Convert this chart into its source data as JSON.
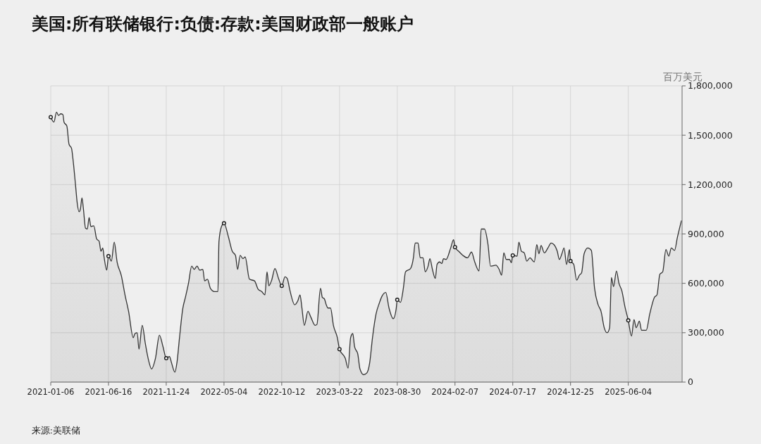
{
  "chart_data": {
    "type": "area",
    "title": "美国:所有联储银行:负债:存款:美国财政部一般账户",
    "ylabel": "百万美元",
    "annotations": [
      "来源:美联储"
    ],
    "xlim": [
      "2021-01-06",
      "2025-11-01"
    ],
    "xticks": [
      "2021-01-06",
      "2021-06-16",
      "2021-11-24",
      "2022-05-04",
      "2022-10-12",
      "2023-03-22",
      "2023-08-30",
      "2024-02-07",
      "2024-07-17",
      "2024-12-25",
      "2025-06-04"
    ],
    "ylim": [
      0,
      1800000
    ],
    "yticks": [
      0,
      {
        "value": 300000,
        "label": "300,000"
      },
      {
        "value": 600000,
        "label": "600,000"
      },
      {
        "value": 900000,
        "label": "900,000"
      },
      {
        "value": 1200000,
        "label": "1,200,000"
      },
      {
        "value": 1500000,
        "label": "1,500,000"
      },
      {
        "value": 1800000,
        "label": "1,800,000"
      }
    ],
    "grid": true,
    "series": [
      {
        "color": "#333333",
        "x": [
          "2021-01-06",
          "2021-01-15",
          "2021-01-22",
          "2021-01-28",
          "2021-02-03",
          "2021-02-09",
          "2021-02-12",
          "2021-02-20",
          "2021-02-26",
          "2021-03-05",
          "2021-03-09",
          "2021-03-16",
          "2021-03-21",
          "2021-03-26",
          "2021-03-30",
          "2021-04-03",
          "2021-04-07",
          "2021-04-13",
          "2021-04-18",
          "2021-04-23",
          "2021-04-28",
          "2021-05-06",
          "2021-05-14",
          "2021-05-21",
          "2021-05-26",
          "2021-05-31",
          "2021-06-04",
          "2021-06-11",
          "2021-06-16",
          "2021-06-24",
          "2021-07-02",
          "2021-07-10",
          "2021-07-22",
          "2021-08-01",
          "2021-08-11",
          "2021-08-24",
          "2021-08-29",
          "2021-09-04",
          "2021-09-09",
          "2021-09-18",
          "2021-09-27",
          "2021-10-06",
          "2021-10-14",
          "2021-10-25",
          "2021-11-05",
          "2021-11-15",
          "2021-11-24",
          "2021-12-03",
          "2021-12-09",
          "2021-12-18",
          "2021-12-24",
          "2021-12-31",
          "2022-01-09",
          "2022-01-17",
          "2022-01-25",
          "2022-02-03",
          "2022-02-10",
          "2022-02-18",
          "2022-02-25",
          "2022-03-06",
          "2022-03-11",
          "2022-03-19",
          "2022-03-27",
          "2022-04-07",
          "2022-04-17",
          "2022-04-20",
          "2022-04-27",
          "2022-05-04",
          "2022-05-16",
          "2022-05-27",
          "2022-06-05",
          "2022-06-11",
          "2022-06-18",
          "2022-06-26",
          "2022-07-02",
          "2022-07-14",
          "2022-07-28",
          "2022-08-07",
          "2022-08-17",
          "2022-08-26",
          "2022-09-01",
          "2022-09-06",
          "2022-09-14",
          "2022-09-23",
          "2022-10-03",
          "2022-10-12",
          "2022-10-21",
          "2022-10-27",
          "2022-11-04",
          "2022-11-17",
          "2022-11-26",
          "2022-12-02",
          "2022-12-07",
          "2022-12-14",
          "2022-12-24",
          "2023-01-01",
          "2023-01-13",
          "2023-01-18",
          "2023-01-28",
          "2023-02-02",
          "2023-02-08",
          "2023-02-13",
          "2023-02-18",
          "2023-02-25",
          "2023-03-05",
          "2023-03-16",
          "2023-03-22",
          "2023-04-07",
          "2023-04-15",
          "2023-04-22",
          "2023-04-28",
          "2023-05-03",
          "2023-05-12",
          "2023-05-18",
          "2023-05-28",
          "2023-06-06",
          "2023-06-14",
          "2023-06-22",
          "2023-07-02",
          "2023-07-11",
          "2023-07-18",
          "2023-07-29",
          "2023-08-07",
          "2023-08-19",
          "2023-08-27",
          "2023-08-30",
          "2023-09-08",
          "2023-09-16",
          "2023-09-22",
          "2023-10-06",
          "2023-10-14",
          "2023-10-19",
          "2023-10-27",
          "2023-11-02",
          "2023-11-10",
          "2023-11-16",
          "2023-11-24",
          "2023-11-29",
          "2023-12-06",
          "2023-12-14",
          "2023-12-19",
          "2023-12-26",
          "2024-01-01",
          "2024-01-06",
          "2024-01-13",
          "2024-01-26",
          "2024-02-03",
          "2024-02-07",
          "2024-02-17",
          "2024-02-29",
          "2024-03-13",
          "2024-03-24",
          "2024-04-02",
          "2024-04-14",
          "2024-04-20",
          "2024-04-29",
          "2024-05-09",
          "2024-05-16",
          "2024-05-31",
          "2024-06-09",
          "2024-06-16",
          "2024-06-22",
          "2024-06-29",
          "2024-07-08",
          "2024-07-13",
          "2024-07-17",
          "2024-07-29",
          "2024-08-03",
          "2024-08-10",
          "2024-08-18",
          "2024-08-25",
          "2024-09-03",
          "2024-09-15",
          "2024-09-22",
          "2024-09-28",
          "2024-10-04",
          "2024-10-13",
          "2024-10-23",
          "2024-11-01",
          "2024-11-09",
          "2024-11-18",
          "2024-11-24",
          "2024-12-01",
          "2024-12-07",
          "2024-12-14",
          "2024-12-22",
          "2024-12-25",
          "2025-01-03",
          "2025-01-11",
          "2025-01-19",
          "2025-01-25",
          "2025-02-01",
          "2025-02-11",
          "2025-02-21",
          "2025-03-02",
          "2025-03-12",
          "2025-03-20",
          "2025-03-29",
          "2025-04-06",
          "2025-04-13",
          "2025-04-18",
          "2025-04-24",
          "2025-05-02",
          "2025-05-09",
          "2025-05-17",
          "2025-05-26",
          "2025-06-04",
          "2025-06-13",
          "2025-06-20",
          "2025-06-26",
          "2025-07-05",
          "2025-07-11",
          "2025-07-24",
          "2025-08-03",
          "2025-08-16",
          "2025-08-23",
          "2025-08-31",
          "2025-09-08",
          "2025-09-17",
          "2025-09-25",
          "2025-10-02",
          "2025-10-11",
          "2025-10-19",
          "2025-10-30"
        ],
        "values": [
          1610000,
          1580000,
          1640000,
          1620000,
          1630000,
          1625000,
          1580000,
          1555000,
          1445000,
          1420000,
          1355000,
          1200000,
          1085000,
          1035000,
          1055000,
          1120000,
          1055000,
          935000,
          930000,
          1000000,
          945000,
          950000,
          870000,
          855000,
          795000,
          815000,
          755000,
          680000,
          765000,
          735000,
          850000,
          730000,
          645000,
          530000,
          430000,
          270000,
          295000,
          300000,
          200000,
          345000,
          230000,
          130000,
          80000,
          145000,
          285000,
          215000,
          145000,
          155000,
          115000,
          60000,
          120000,
          270000,
          445000,
          520000,
          600000,
          705000,
          685000,
          705000,
          680000,
          685000,
          615000,
          625000,
          570000,
          550000,
          550000,
          855000,
          945000,
          965000,
          885000,
          795000,
          770000,
          685000,
          770000,
          750000,
          760000,
          625000,
          615000,
          565000,
          550000,
          530000,
          670000,
          585000,
          620000,
          690000,
          630000,
          585000,
          640000,
          630000,
          555000,
          470000,
          495000,
          530000,
          455000,
          345000,
          430000,
          395000,
          345000,
          350000,
          570000,
          515000,
          505000,
          470000,
          450000,
          450000,
          345000,
          270000,
          200000,
          145000,
          85000,
          270000,
          295000,
          215000,
          170000,
          80000,
          45000,
          55000,
          115000,
          270000,
          415000,
          480000,
          520000,
          545000,
          450000,
          385000,
          445000,
          500000,
          485000,
          570000,
          670000,
          690000,
          755000,
          845000,
          845000,
          755000,
          755000,
          670000,
          705000,
          750000,
          685000,
          630000,
          715000,
          730000,
          720000,
          750000,
          745000,
          815000,
          865000,
          820000,
          795000,
          770000,
          755000,
          790000,
          730000,
          675000,
          930000,
          930000,
          835000,
          705000,
          710000,
          685000,
          650000,
          785000,
          745000,
          745000,
          725000,
          770000,
          765000,
          850000,
          795000,
          785000,
          735000,
          755000,
          730000,
          835000,
          780000,
          830000,
          785000,
          815000,
          845000,
          835000,
          795000,
          745000,
          780000,
          815000,
          715000,
          805000,
          735000,
          715000,
          620000,
          650000,
          665000,
          780000,
          815000,
          800000,
          570000,
          470000,
          430000,
          330000,
          300000,
          330000,
          635000,
          580000,
          675000,
          600000,
          555000,
          455000,
          375000,
          280000,
          380000,
          330000,
          370000,
          315000,
          315000,
          415000,
          515000,
          530000,
          655000,
          670000,
          805000,
          765000,
          815000,
          800000,
          880000,
          980000
        ]
      },
      {
        "type": "scatter",
        "color": "#1a1a1a",
        "marker": "circle",
        "x": [
          "2021-01-06",
          "2021-06-16",
          "2021-11-24",
          "2022-05-04",
          "2022-10-12",
          "2023-03-22",
          "2023-08-30",
          "2024-02-07",
          "2024-07-17",
          "2024-12-25",
          "2025-06-04"
        ],
        "values": [
          1610000,
          765000,
          145000,
          965000,
          585000,
          200000,
          500000,
          820000,
          770000,
          735000,
          375000
        ]
      }
    ]
  }
}
